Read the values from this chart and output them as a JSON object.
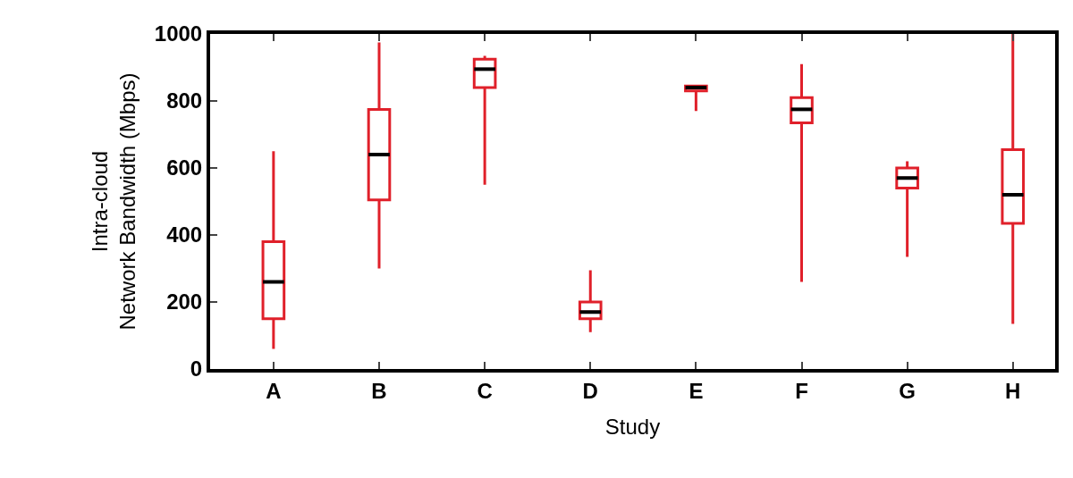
{
  "chart_data": {
    "type": "box",
    "xlabel": "Study",
    "ylabel": "Intra-cloud\nNetwork Bandwidth (Mbps)",
    "categories": [
      "A",
      "B",
      "C",
      "D",
      "E",
      "F",
      "G",
      "H"
    ],
    "color": "#e0202a",
    "ylim": [
      0,
      1000
    ],
    "yticks": [
      0,
      200,
      400,
      600,
      800,
      1000
    ],
    "boxes": [
      {
        "low": 60,
        "q1": 150,
        "median": 260,
        "q3": 380,
        "high": 650
      },
      {
        "low": 300,
        "q1": 505,
        "median": 640,
        "q3": 775,
        "high": 975
      },
      {
        "low": 550,
        "q1": 840,
        "median": 895,
        "q3": 925,
        "high": 935
      },
      {
        "low": 110,
        "q1": 150,
        "median": 170,
        "q3": 200,
        "high": 295
      },
      {
        "low": 770,
        "q1": 830,
        "median": 840,
        "q3": 845,
        "high": 845
      },
      {
        "low": 260,
        "q1": 735,
        "median": 775,
        "q3": 810,
        "high": 910
      },
      {
        "low": 335,
        "q1": 540,
        "median": 570,
        "q3": 600,
        "high": 620
      },
      {
        "low": 135,
        "q1": 435,
        "median": 520,
        "q3": 655,
        "high": 1000
      }
    ]
  }
}
